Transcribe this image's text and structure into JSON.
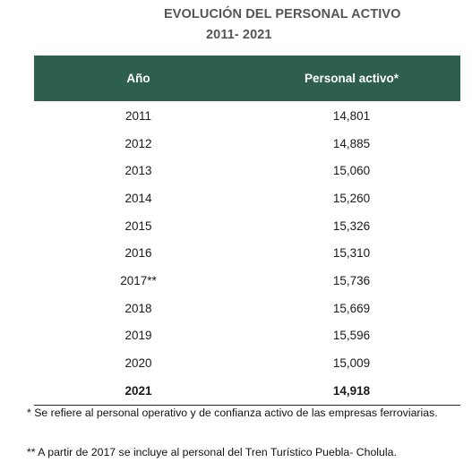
{
  "title": {
    "line1": "EVOLUCIÓN DEL PERSONAL ACTIVO",
    "line2": "2011- 2021"
  },
  "table": {
    "headers": [
      "Año",
      "Personal activo*"
    ],
    "rows": [
      {
        "year": "2011",
        "value": "14,801"
      },
      {
        "year": "2012",
        "value": "14,885"
      },
      {
        "year": "2013",
        "value": "15,060"
      },
      {
        "year": "2014",
        "value": "15,260"
      },
      {
        "year": "2015",
        "value": "15,326"
      },
      {
        "year": "2016",
        "value": "15,310"
      },
      {
        "year": "2017**",
        "value": "15,736"
      },
      {
        "year": "2018",
        "value": "15,669"
      },
      {
        "year": "2019",
        "value": "15,596"
      },
      {
        "year": "2020",
        "value": "15,009"
      },
      {
        "year": "2021",
        "value": "14,918"
      }
    ]
  },
  "notes": {
    "note1": "* Se refiere al personal operativo y de confianza activo de las empresas ferroviarias.",
    "note2": "** A partir de 2017 se incluye al personal del Tren Turístico Puebla- Cholula."
  },
  "colors": {
    "header_bg": "#2e5e4e",
    "header_text": "#ffffff",
    "title_text": "#555555"
  }
}
